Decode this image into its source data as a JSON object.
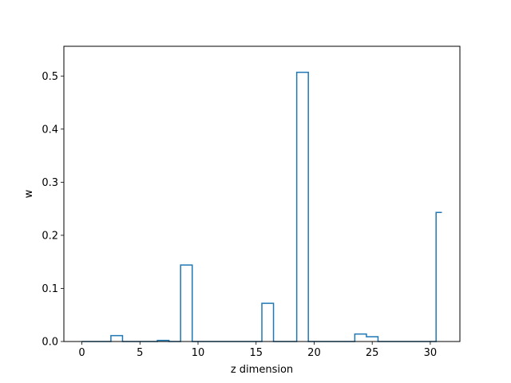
{
  "chart_data": {
    "type": "line",
    "drawstyle": "steps-mid",
    "xlabel": "z dimension",
    "ylabel": "w",
    "xlim": [
      -1.55,
      32.55
    ],
    "ylim": [
      0,
      0.556
    ],
    "xticks": [
      0,
      5,
      10,
      15,
      20,
      25,
      30
    ],
    "yticks": [
      0.0,
      0.1,
      0.2,
      0.3,
      0.4,
      0.5
    ],
    "ytick_labels": [
      "0.0",
      "0.1",
      "0.2",
      "0.3",
      "0.4",
      "0.5"
    ],
    "grid": false,
    "legend": "none",
    "series": [
      {
        "color": "#1f77b4",
        "x": [
          0,
          1,
          2,
          3,
          4,
          5,
          6,
          7,
          8,
          9,
          10,
          11,
          12,
          13,
          14,
          15,
          16,
          17,
          18,
          19,
          20,
          21,
          22,
          23,
          24,
          25,
          26,
          27,
          28,
          29,
          30,
          31
        ],
        "values": [
          0,
          0,
          0,
          0.011,
          0,
          0,
          0,
          0.002,
          0,
          0.144,
          0,
          0,
          0,
          0,
          0,
          0,
          0.072,
          0,
          0,
          0.507,
          0,
          0,
          0,
          0,
          0.014,
          0.009,
          0,
          0,
          0,
          0,
          0,
          0.243
        ]
      }
    ]
  }
}
